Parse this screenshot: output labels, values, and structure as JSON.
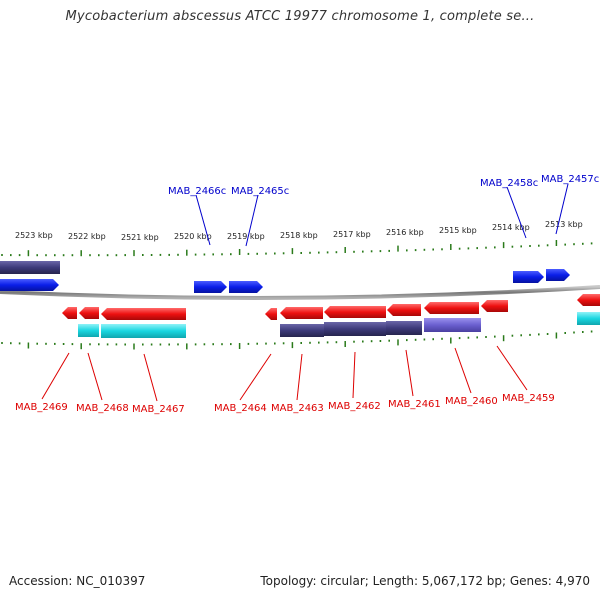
{
  "title": "Mycobacterium abscessus ATCC 19977 chromosome 1, complete se...",
  "footer": {
    "accession": "Accession: NC_010397",
    "summary": "Topology: circular; Length: 5,067,172 bp; Genes: 4,970"
  },
  "colors": {
    "forward_gene_label": "#0000cc",
    "reverse_gene_label": "#dd0000",
    "forward_cds": "#0a1ee8",
    "reverse_cds": "#ee1010",
    "gene_cyan": "#19d6e0",
    "gene_navy": "#3d3a7a",
    "gene_slate": "#6a5fcf",
    "tick": "#2a7a1a",
    "backbone": "#8a8a8a"
  },
  "scale_ticks": [
    "2523 kbp",
    "2522 kbp",
    "2521 kbp",
    "2520 kbp",
    "2519 kbp",
    "2518 kbp",
    "2517 kbp",
    "2516 kbp",
    "2515 kbp",
    "2514 kbp",
    "2513 kbp"
  ],
  "gene_labels_top": [
    "MAB_2466c",
    "MAB_2465c",
    "MAB_2458c",
    "MAB_2457c"
  ],
  "gene_labels_bottom": [
    "MAB_2469",
    "MAB_2468",
    "MAB_2467",
    "MAB_2464",
    "MAB_2463",
    "MAB_2462",
    "MAB_2461",
    "MAB_2460",
    "MAB_2459"
  ]
}
